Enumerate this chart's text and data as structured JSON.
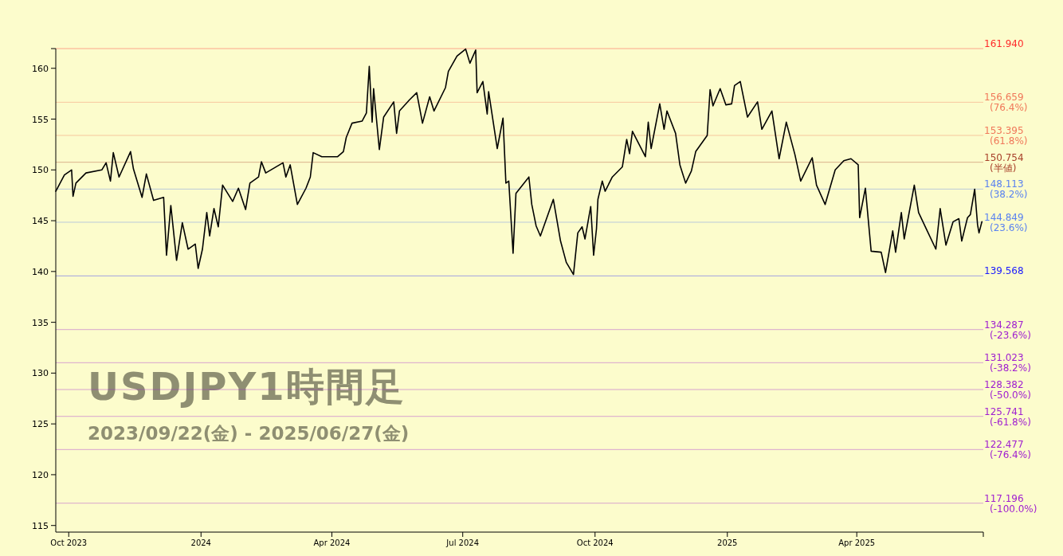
{
  "chart_data": {
    "type": "line",
    "title": "USDJPY1時間足",
    "subtitle": "2023/09/22(金) - 2025/06/27(金)",
    "xlim": [
      "2023-09-22",
      "2025-06-28"
    ],
    "xticks": [
      {
        "value": "2023-10-01",
        "label": "Oct 2023"
      },
      {
        "value": "2024-01-01",
        "label": "2024"
      },
      {
        "value": "2024-04-01",
        "label": "Apr 2024"
      },
      {
        "value": "2024-07-01",
        "label": "Jul 2024"
      },
      {
        "value": "2024-10-01",
        "label": "Oct 2024"
      },
      {
        "value": "2025-01-01",
        "label": "2025"
      },
      {
        "value": "2025-04-01",
        "label": "Apr 2025"
      }
    ],
    "ylim": [
      114.35,
      161.94
    ],
    "yticks": [
      115,
      120,
      125,
      130,
      135,
      140,
      145,
      150,
      155,
      160
    ],
    "ref_lines": [
      {
        "axis": "y",
        "value": 161.94,
        "label": "161.940",
        "color": "#ff2a2a"
      },
      {
        "axis": "y",
        "value": 156.659,
        "label": "156.659 (76.4%)",
        "color": "#f0785a"
      },
      {
        "axis": "y",
        "value": 153.395,
        "label": "153.395 (61.8%)",
        "color": "#f0785a"
      },
      {
        "axis": "y",
        "value": 150.754,
        "label": "150.754 (半値)",
        "color": "#a8402a"
      },
      {
        "axis": "y",
        "value": 148.113,
        "label": "148.113 (38.2%)",
        "color": "#5a82f0"
      },
      {
        "axis": "y",
        "value": 144.849,
        "label": "144.849 (23.6%)",
        "color": "#5a82f0"
      },
      {
        "axis": "y",
        "value": 139.568,
        "label": "139.568",
        "color": "#1a1aff"
      },
      {
        "axis": "y",
        "value": 134.287,
        "label": "134.287 (-23.6%)",
        "color": "#a020d0"
      },
      {
        "axis": "y",
        "value": 131.023,
        "label": "131.023 (-38.2%)",
        "color": "#a020d0"
      },
      {
        "axis": "y",
        "value": 128.382,
        "label": "128.382 (-50.0%)",
        "color": "#a020d0"
      },
      {
        "axis": "y",
        "value": 125.741,
        "label": "125.741 (-61.8%)",
        "color": "#a020d0"
      },
      {
        "axis": "y",
        "value": 122.477,
        "label": "122.477 (-76.4%)",
        "color": "#a020d0"
      },
      {
        "axis": "y",
        "value": 117.196,
        "label": "117.196 (-100.0%)",
        "color": "#a020d0"
      }
    ],
    "series": [
      {
        "color": "#000000",
        "x": [
          "2023-09-22",
          "2023-09-28",
          "2023-10-03",
          "2023-10-04",
          "2023-10-06",
          "2023-10-13",
          "2023-10-24",
          "2023-10-27",
          "2023-10-30",
          "2023-11-01",
          "2023-11-05",
          "2023-11-13",
          "2023-11-15",
          "2023-11-21",
          "2023-11-24",
          "2023-11-29",
          "2023-12-06",
          "2023-12-08",
          "2023-12-11",
          "2023-12-15",
          "2023-12-19",
          "2023-12-23",
          "2023-12-28",
          "2023-12-30",
          "2024-01-02",
          "2024-01-05",
          "2024-01-07",
          "2024-01-10",
          "2024-01-13",
          "2024-01-16",
          "2024-01-23",
          "2024-01-27",
          "2024-02-01",
          "2024-02-04",
          "2024-02-10",
          "2024-02-12",
          "2024-02-15",
          "2024-02-27",
          "2024-02-29",
          "2024-03-03",
          "2024-03-08",
          "2024-03-14",
          "2024-03-17",
          "2024-03-19",
          "2024-03-25",
          "2024-04-05",
          "2024-04-09",
          "2024-04-11",
          "2024-04-15",
          "2024-04-22",
          "2024-04-25",
          "2024-04-27",
          "2024-04-29",
          "2024-04-30",
          "2024-05-04",
          "2024-05-07",
          "2024-05-14",
          "2024-05-16",
          "2024-05-18",
          "2024-05-25",
          "2024-05-30",
          "2024-06-03",
          "2024-06-08",
          "2024-06-11",
          "2024-06-19",
          "2024-06-21",
          "2024-06-27",
          "2024-07-03",
          "2024-07-06",
          "2024-07-10",
          "2024-07-11",
          "2024-07-15",
          "2024-07-18",
          "2024-07-19",
          "2024-07-25",
          "2024-07-29",
          "2024-07-31",
          "2024-08-02",
          "2024-08-05",
          "2024-08-07",
          "2024-08-16",
          "2024-08-18",
          "2024-08-21",
          "2024-08-24",
          "2024-09-02",
          "2024-09-07",
          "2024-09-11",
          "2024-09-16",
          "2024-09-19",
          "2024-09-22",
          "2024-09-24",
          "2024-09-28",
          "2024-09-30",
          "2024-10-02",
          "2024-10-03",
          "2024-10-06",
          "2024-10-08",
          "2024-10-13",
          "2024-10-20",
          "2024-10-23",
          "2024-10-25",
          "2024-10-27",
          "2024-11-05",
          "2024-11-07",
          "2024-11-09",
          "2024-11-15",
          "2024-11-18",
          "2024-11-20",
          "2024-11-26",
          "2024-11-29",
          "2024-12-03",
          "2024-12-07",
          "2024-12-10",
          "2024-12-18",
          "2024-12-20",
          "2024-12-22",
          "2024-12-27",
          "2024-12-31",
          "2025-01-04",
          "2025-01-06",
          "2025-01-10",
          "2025-01-15",
          "2025-01-22",
          "2025-01-25",
          "2025-02-01",
          "2025-02-06",
          "2025-02-11",
          "2025-02-17",
          "2025-02-21",
          "2025-03-01",
          "2025-03-04",
          "2025-03-10",
          "2025-03-17",
          "2025-03-23",
          "2025-03-28",
          "2025-04-02",
          "2025-04-03",
          "2025-04-07",
          "2025-04-11",
          "2025-04-18",
          "2025-04-21",
          "2025-04-26",
          "2025-04-28",
          "2025-05-02",
          "2025-05-04",
          "2025-05-11",
          "2025-05-14",
          "2025-05-20",
          "2025-05-26",
          "2025-05-29",
          "2025-06-02",
          "2025-06-07",
          "2025-06-11",
          "2025-06-13",
          "2025-06-17",
          "2025-06-19",
          "2025-06-22",
          "2025-06-24",
          "2025-06-25",
          "2025-06-27"
        ],
        "values": [
          147.9,
          149.5,
          150.0,
          147.4,
          148.7,
          149.7,
          150.0,
          150.7,
          148.9,
          151.7,
          149.3,
          151.8,
          150.1,
          147.3,
          149.6,
          147.0,
          147.3,
          141.6,
          146.5,
          141.1,
          144.8,
          142.2,
          142.7,
          140.3,
          142.2,
          145.8,
          143.5,
          146.2,
          144.4,
          148.5,
          146.9,
          148.2,
          146.1,
          148.7,
          149.3,
          150.8,
          149.7,
          150.7,
          149.3,
          150.5,
          146.6,
          148.2,
          149.3,
          151.7,
          151.3,
          151.3,
          151.8,
          153.2,
          154.6,
          154.8,
          155.6,
          160.2,
          154.7,
          158.0,
          152.0,
          155.2,
          156.7,
          153.6,
          155.8,
          156.9,
          157.6,
          154.6,
          157.2,
          155.8,
          158.1,
          159.7,
          161.2,
          161.9,
          160.5,
          161.8,
          157.6,
          158.7,
          155.5,
          157.7,
          152.1,
          155.1,
          148.7,
          148.9,
          141.8,
          147.7,
          149.3,
          146.6,
          144.5,
          143.5,
          147.1,
          143.0,
          140.9,
          139.7,
          143.8,
          144.4,
          143.2,
          146.4,
          141.6,
          144.2,
          147.1,
          148.9,
          147.9,
          149.3,
          150.3,
          153.0,
          151.6,
          153.8,
          151.3,
          154.7,
          152.1,
          156.5,
          154.0,
          155.8,
          153.6,
          150.5,
          148.7,
          149.9,
          151.8,
          153.4,
          157.9,
          156.3,
          158.0,
          156.4,
          156.5,
          158.3,
          158.7,
          155.2,
          156.7,
          154.0,
          155.8,
          151.1,
          154.7,
          151.5,
          148.9,
          151.2,
          148.5,
          146.6,
          150.0,
          150.9,
          151.1,
          150.5,
          145.3,
          148.2,
          142.0,
          141.9,
          139.9,
          144.0,
          141.9,
          145.8,
          143.2,
          148.5,
          145.8,
          144.0,
          142.2,
          146.2,
          142.6,
          144.9,
          145.2,
          143.0,
          145.3,
          145.6,
          148.1,
          144.6,
          143.8,
          144.9
        ]
      }
    ]
  }
}
